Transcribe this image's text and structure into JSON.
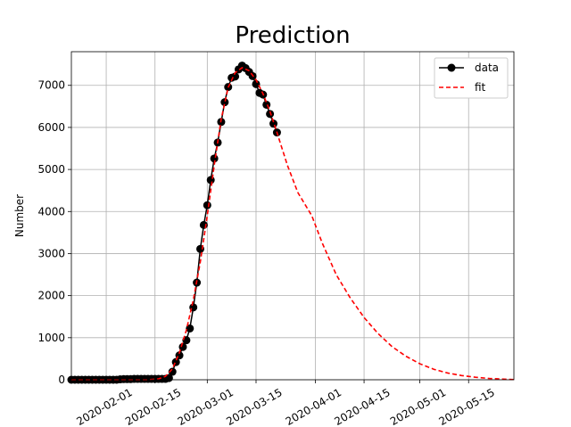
{
  "chart_data": {
    "type": "line",
    "title": "Prediction",
    "xlabel": "",
    "ylabel": "Number",
    "x_type": "date",
    "xlim": [
      "2020-01-22",
      "2020-05-28"
    ],
    "ylim": [
      0,
      7800
    ],
    "grid": true,
    "legend_position": "top-right",
    "x_ticks": [
      "2020-02-01",
      "2020-02-15",
      "2020-03-01",
      "2020-03-15",
      "2020-04-01",
      "2020-04-15",
      "2020-05-01",
      "2020-05-15"
    ],
    "y_ticks": [
      0,
      1000,
      2000,
      3000,
      4000,
      5000,
      6000,
      7000
    ],
    "series": [
      {
        "name": "data",
        "style": "line-marker",
        "color": "#000000",
        "marker_face": "#000000",
        "points": [
          [
            "2020-01-22",
            0
          ],
          [
            "2020-01-23",
            0
          ],
          [
            "2020-01-24",
            0
          ],
          [
            "2020-01-25",
            0
          ],
          [
            "2020-01-26",
            0
          ],
          [
            "2020-01-27",
            0
          ],
          [
            "2020-01-28",
            0
          ],
          [
            "2020-01-29",
            0
          ],
          [
            "2020-01-30",
            0
          ],
          [
            "2020-01-31",
            0
          ],
          [
            "2020-02-01",
            0
          ],
          [
            "2020-02-02",
            0
          ],
          [
            "2020-02-03",
            0
          ],
          [
            "2020-02-04",
            0
          ],
          [
            "2020-02-05",
            10
          ],
          [
            "2020-02-06",
            15
          ],
          [
            "2020-02-07",
            15
          ],
          [
            "2020-02-08",
            15
          ],
          [
            "2020-02-09",
            20
          ],
          [
            "2020-02-10",
            20
          ],
          [
            "2020-02-11",
            20
          ],
          [
            "2020-02-12",
            20
          ],
          [
            "2020-02-13",
            20
          ],
          [
            "2020-02-14",
            20
          ],
          [
            "2020-02-15",
            20
          ],
          [
            "2020-02-16",
            20
          ],
          [
            "2020-02-17",
            20
          ],
          [
            "2020-02-18",
            20
          ],
          [
            "2020-02-19",
            40
          ],
          [
            "2020-02-20",
            190
          ],
          [
            "2020-02-21",
            420
          ],
          [
            "2020-02-22",
            580
          ],
          [
            "2020-02-23",
            780
          ],
          [
            "2020-02-24",
            940
          ],
          [
            "2020-02-25",
            1220
          ],
          [
            "2020-02-26",
            1720
          ],
          [
            "2020-02-27",
            2310
          ],
          [
            "2020-02-28",
            3110
          ],
          [
            "2020-02-29",
            3680
          ],
          [
            "2020-03-01",
            4150
          ],
          [
            "2020-03-02",
            4750
          ],
          [
            "2020-03-03",
            5260
          ],
          [
            "2020-03-04",
            5640
          ],
          [
            "2020-03-05",
            6130
          ],
          [
            "2020-03-06",
            6600
          ],
          [
            "2020-03-07",
            6960
          ],
          [
            "2020-03-08",
            7180
          ],
          [
            "2020-03-09",
            7210
          ],
          [
            "2020-03-10",
            7380
          ],
          [
            "2020-03-11",
            7470
          ],
          [
            "2020-03-12",
            7410
          ],
          [
            "2020-03-13",
            7320
          ],
          [
            "2020-03-14",
            7220
          ],
          [
            "2020-03-15",
            7030
          ],
          [
            "2020-03-16",
            6820
          ],
          [
            "2020-03-17",
            6780
          ],
          [
            "2020-03-18",
            6540
          ],
          [
            "2020-03-19",
            6320
          ],
          [
            "2020-03-20",
            6090
          ],
          [
            "2020-03-21",
            5880
          ]
        ]
      },
      {
        "name": "fit",
        "style": "dashed",
        "color": "#ff0000",
        "points": [
          [
            "2020-01-22",
            0
          ],
          [
            "2020-02-13",
            0
          ],
          [
            "2020-02-16",
            20
          ],
          [
            "2020-02-18",
            80
          ],
          [
            "2020-02-20",
            260
          ],
          [
            "2020-02-22",
            640
          ],
          [
            "2020-02-24",
            1180
          ],
          [
            "2020-02-26",
            1900
          ],
          [
            "2020-02-28",
            2800
          ],
          [
            "2020-03-01",
            3900
          ],
          [
            "2020-03-03",
            5100
          ],
          [
            "2020-03-05",
            6200
          ],
          [
            "2020-03-07",
            6950
          ],
          [
            "2020-03-09",
            7300
          ],
          [
            "2020-03-11",
            7420
          ],
          [
            "2020-03-13",
            7350
          ],
          [
            "2020-03-15",
            7130
          ],
          [
            "2020-03-17",
            6800
          ],
          [
            "2020-03-19",
            6380
          ],
          [
            "2020-03-21",
            5880
          ],
          [
            "2020-03-24",
            5100
          ],
          [
            "2020-03-27",
            4450
          ],
          [
            "2020-03-31",
            3900
          ],
          [
            "2020-04-03",
            3250
          ],
          [
            "2020-04-07",
            2500
          ],
          [
            "2020-04-11",
            1950
          ],
          [
            "2020-04-15",
            1480
          ],
          [
            "2020-04-19",
            1100
          ],
          [
            "2020-04-23",
            790
          ],
          [
            "2020-04-27",
            560
          ],
          [
            "2020-05-01",
            380
          ],
          [
            "2020-05-05",
            250
          ],
          [
            "2020-05-09",
            160
          ],
          [
            "2020-05-13",
            100
          ],
          [
            "2020-05-17",
            60
          ],
          [
            "2020-05-21",
            30
          ],
          [
            "2020-05-25",
            15
          ],
          [
            "2020-05-28",
            5
          ]
        ]
      }
    ]
  }
}
